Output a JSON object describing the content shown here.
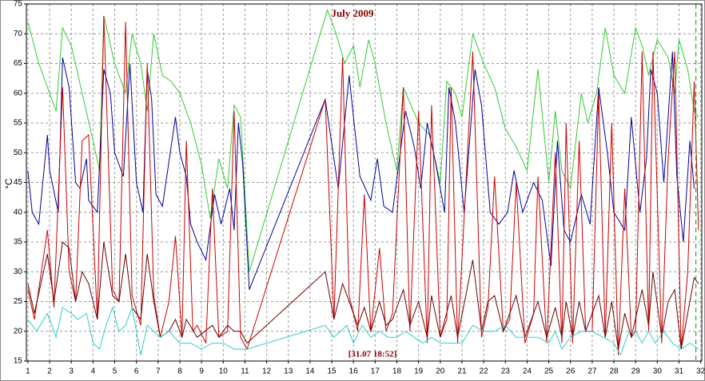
{
  "chart_data": {
    "type": "line",
    "title": "July 2009",
    "y_label": "°C",
    "annotation": "[31.07 18:52]",
    "marker_x": 31.78,
    "marker_color": "#009900",
    "xlim": [
      0.93,
      32.05
    ],
    "ylim": [
      15,
      75
    ],
    "xticks": [
      1,
      2,
      3,
      4,
      5,
      6,
      7,
      8,
      9,
      10,
      11,
      12,
      13,
      14,
      15,
      16,
      17,
      18,
      19,
      20,
      21,
      22,
      23,
      24,
      25,
      26,
      27,
      28,
      29,
      30,
      31,
      32
    ],
    "yticks": [
      15,
      20,
      25,
      30,
      35,
      40,
      45,
      50,
      55,
      60,
      65,
      70,
      75
    ],
    "grid": true,
    "series": [
      {
        "color": "#33cc33",
        "x": [
          1,
          1.5,
          2.3,
          2.6,
          3,
          3.5,
          4,
          4.3,
          4.5,
          5,
          5.5,
          5.8,
          6.2,
          6.5,
          6.8,
          7.2,
          7.6,
          8,
          8.5,
          9,
          9.4,
          9.8,
          10.2,
          10.5,
          10.8,
          11.2,
          14.8,
          15.2,
          15.6,
          16,
          16.3,
          16.7,
          17,
          17.5,
          18,
          18.3,
          19,
          19.5,
          20,
          20.3,
          20.7,
          21,
          21.5,
          22,
          22.5,
          23,
          23.5,
          24,
          24.5,
          25,
          25.3,
          25.6,
          26,
          26.5,
          26.8,
          27.2,
          27.6,
          28,
          28.5,
          29,
          29.3,
          29.6,
          30,
          30.5,
          30.8,
          31,
          31.4,
          31.7,
          31.9
        ],
        "values": [
          72,
          65,
          57,
          71,
          68,
          60,
          52,
          47,
          73,
          65,
          60,
          70,
          65,
          57,
          70,
          63,
          62,
          60,
          55,
          48,
          39,
          49,
          44,
          58,
          56,
          30,
          74,
          70,
          65,
          68,
          61,
          69,
          65,
          55,
          47,
          61,
          55,
          53,
          45,
          62,
          60,
          56,
          70,
          65,
          61,
          54,
          51,
          47,
          64,
          45,
          57,
          47,
          44,
          60,
          55,
          60,
          71,
          63,
          60,
          71,
          68,
          63,
          69,
          66,
          60,
          69,
          64,
          57,
          56
        ]
      },
      {
        "color": "#000099",
        "x": [
          1,
          1.2,
          1.5,
          1.9,
          2,
          2.4,
          2.6,
          2.9,
          3.2,
          3.4,
          3.7,
          3.8,
          4.2,
          4.5,
          4.8,
          5,
          5.4,
          5.7,
          6,
          6.3,
          6.5,
          6.7,
          6.9,
          7.2,
          7.8,
          8,
          8.3,
          8.5,
          8.8,
          9.2,
          9.6,
          9.9,
          10.3,
          10.5,
          10.7,
          10.9,
          11.2,
          14.7,
          15.3,
          15.8,
          16,
          16.3,
          16.8,
          17.1,
          17.4,
          17.8,
          18.4,
          18.8,
          19.1,
          19.4,
          19.8,
          20.2,
          20.4,
          20.7,
          21.1,
          21.6,
          21.9,
          22.3,
          22.7,
          23.1,
          23.4,
          23.8,
          24.3,
          24.7,
          25.1,
          25.4,
          25.7,
          26,
          26.5,
          26.9,
          27.3,
          27.7,
          28,
          28.5,
          28.8,
          29.2,
          29.5,
          29.7,
          30,
          30.3,
          30.7,
          30.9,
          31.2,
          31.5,
          31.7
        ],
        "values": [
          47,
          40,
          38,
          53,
          47,
          40,
          66,
          61,
          45,
          44,
          49,
          42,
          40,
          64,
          60,
          50,
          46,
          65,
          45,
          40,
          64,
          59,
          43,
          41,
          56,
          50,
          46,
          38,
          35,
          32,
          43,
          38,
          44,
          37,
          55,
          48,
          27,
          59,
          44,
          63,
          56,
          46,
          42,
          49,
          41,
          40,
          57,
          51,
          44,
          55,
          48,
          40,
          61,
          55,
          40,
          64,
          58,
          40,
          38,
          40,
          47,
          40,
          45,
          42,
          31,
          52,
          37,
          35,
          43,
          38,
          61,
          50,
          40,
          37,
          56,
          40,
          49,
          64,
          60,
          45,
          67,
          46,
          35,
          52,
          44
        ]
      },
      {
        "color": "#cc0000",
        "x": [
          1,
          1.3,
          1.9,
          2.2,
          2.6,
          2.9,
          3.2,
          3.5,
          3.8,
          4.2,
          4.5,
          4.9,
          5.2,
          5.5,
          5.8,
          6.2,
          6.5,
          6.8,
          7.1,
          7.5,
          7.8,
          8.1,
          8.3,
          8.6,
          8.8,
          9.2,
          9.5,
          9.8,
          10.2,
          10.5,
          10.8,
          11.1,
          14.7,
          15.1,
          15.5,
          15.8,
          16.2,
          16.5,
          16.8,
          17.2,
          17.5,
          17.8,
          18.3,
          18.6,
          19,
          19.4,
          19.6,
          20,
          20.3,
          20.5,
          20.8,
          21.5,
          21.9,
          22.2,
          22.5,
          22.9,
          23.2,
          23.5,
          23.9,
          24.3,
          24.5,
          24.9,
          25.3,
          25.6,
          25.8,
          26.1,
          26.4,
          26.7,
          27,
          27.3,
          27.6,
          27.9,
          28.2,
          28.5,
          28.8,
          29,
          29.3,
          29.6,
          29.8,
          30.2,
          30.5,
          30.8,
          31.1,
          31.4,
          31.7,
          31.9
        ],
        "values": [
          27,
          22,
          37,
          24,
          61,
          30,
          25,
          52,
          53,
          22,
          73,
          27,
          25,
          72,
          26,
          21,
          65,
          26,
          19,
          25,
          36,
          19,
          52,
          20,
          21,
          18,
          44,
          19,
          20,
          57,
          19,
          17,
          59,
          22,
          66,
          26,
          20,
          43,
          20,
          34,
          20,
          23,
          61,
          20,
          57,
          18,
          58,
          19,
          22,
          61,
          18,
          67,
          19,
          24,
          46,
          20,
          22,
          45,
          18,
          23,
          46,
          18,
          50,
          18,
          55,
          18,
          52,
          20,
          20,
          60,
          19,
          55,
          16,
          44,
          19,
          20,
          67,
          20,
          67,
          18,
          49,
          67,
          17,
          30,
          62,
          37
        ]
      },
      {
        "color": "#660000",
        "x": [
          1,
          1.3,
          1.9,
          2.2,
          2.6,
          2.9,
          3.2,
          3.5,
          3.8,
          4.2,
          4.5,
          4.9,
          5.2,
          5.5,
          5.8,
          6.2,
          6.5,
          6.8,
          7.1,
          7.5,
          7.8,
          8.1,
          8.3,
          8.8,
          9.5,
          9.8,
          10.2,
          10.5,
          10.8,
          11.1,
          14.7,
          15.1,
          15.5,
          15.8,
          16.2,
          16.5,
          16.8,
          17.2,
          17.5,
          17.8,
          18.3,
          18.6,
          19,
          19.4,
          19.6,
          20,
          20.5,
          20.8,
          21.5,
          21.9,
          22.2,
          22.5,
          22.9,
          23.5,
          23.9,
          24.5,
          24.9,
          25.3,
          25.6,
          25.8,
          26.1,
          26.4,
          26.7,
          27.3,
          27.6,
          27.9,
          28.2,
          28.5,
          28.8,
          29.3,
          29.6,
          29.8,
          30.2,
          30.5,
          30.8,
          31.1,
          31.7,
          31.9
        ],
        "values": [
          28,
          23,
          33,
          25,
          35,
          34,
          25,
          30,
          28,
          22,
          35,
          26,
          25,
          33,
          24,
          22,
          33,
          25,
          19,
          20,
          22,
          19,
          22,
          19,
          21,
          19,
          21,
          20,
          20,
          18,
          30,
          22,
          28,
          25,
          21,
          24,
          20,
          25,
          21,
          22,
          27,
          21,
          25,
          19,
          26,
          19,
          26,
          19,
          32,
          20,
          25,
          26,
          20,
          26,
          19,
          25,
          19,
          24,
          19,
          25,
          19,
          25,
          20,
          26,
          19,
          25,
          17,
          23,
          19,
          27,
          21,
          30,
          19,
          25,
          27,
          17,
          29,
          28
        ]
      },
      {
        "color": "#33cccc",
        "x": [
          1,
          1.4,
          1.9,
          2.3,
          2.6,
          3,
          3.3,
          3.7,
          4,
          4.3,
          4.6,
          4.9,
          5.2,
          5.5,
          5.8,
          6.2,
          6.5,
          6.8,
          7.1,
          7.5,
          8,
          8.5,
          9,
          9.5,
          10,
          10.5,
          11.1,
          14.7,
          15.1,
          15.4,
          15.7,
          16,
          16.4,
          16.8,
          17.2,
          17.6,
          18,
          18.4,
          18.8,
          19.2,
          19.6,
          20,
          20.5,
          21,
          21.5,
          22,
          22.5,
          23,
          23.5,
          24,
          24.5,
          25,
          25.3,
          25.6,
          26,
          26.5,
          27,
          27.5,
          28,
          28.3,
          28.7,
          29,
          29.3,
          29.6,
          29.9,
          30.3,
          30.7,
          31.1,
          31.5,
          31.9
        ],
        "values": [
          22,
          20,
          23,
          19,
          24,
          23,
          22,
          23,
          18,
          17,
          21,
          24,
          20,
          21,
          24,
          16,
          21,
          20,
          19,
          20,
          18,
          18,
          17,
          18,
          18,
          17,
          17,
          21,
          19,
          20,
          21,
          18,
          21,
          19,
          20,
          19,
          19,
          20,
          19,
          18,
          19,
          18,
          18,
          18,
          21,
          20,
          20,
          21,
          19,
          19,
          19,
          18,
          20,
          17,
          19,
          20,
          20,
          19,
          18,
          16,
          20,
          20,
          18,
          20,
          18,
          20,
          18,
          17,
          18,
          17
        ]
      }
    ]
  }
}
